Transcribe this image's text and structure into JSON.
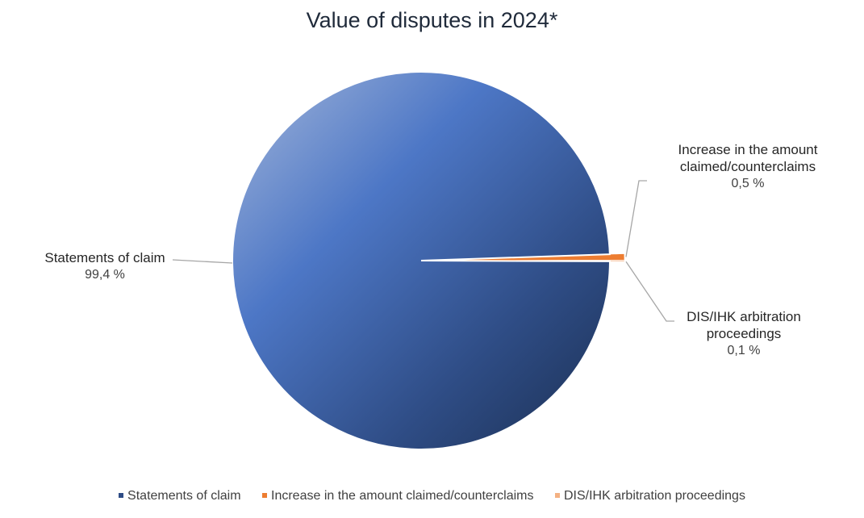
{
  "chart_data": {
    "type": "pie",
    "title": "Value of disputes in 2024*",
    "categories": [
      "Statements of claim",
      "Increase in the amount claimed/counterclaims",
      "DIS/IHK arbitration proceedings"
    ],
    "values": [
      99.4,
      0.5,
      0.1
    ],
    "value_labels": [
      "99,4 %",
      "0,5 %",
      "0,1 %"
    ],
    "data_labels": [
      {
        "name_lines": [
          "Statements of claim"
        ],
        "pct": "99,4 %"
      },
      {
        "name_lines": [
          "Increase in the amount",
          "claimed/counterclaims"
        ],
        "pct": "0,5 %"
      },
      {
        "name_lines": [
          "DIS/IHK arbitration",
          "proceedings"
        ],
        "pct": "0,1 %"
      }
    ],
    "colors": [
      "#4472c4",
      "#ed7d31",
      "#f4b183"
    ],
    "legend_position": "bottom"
  }
}
